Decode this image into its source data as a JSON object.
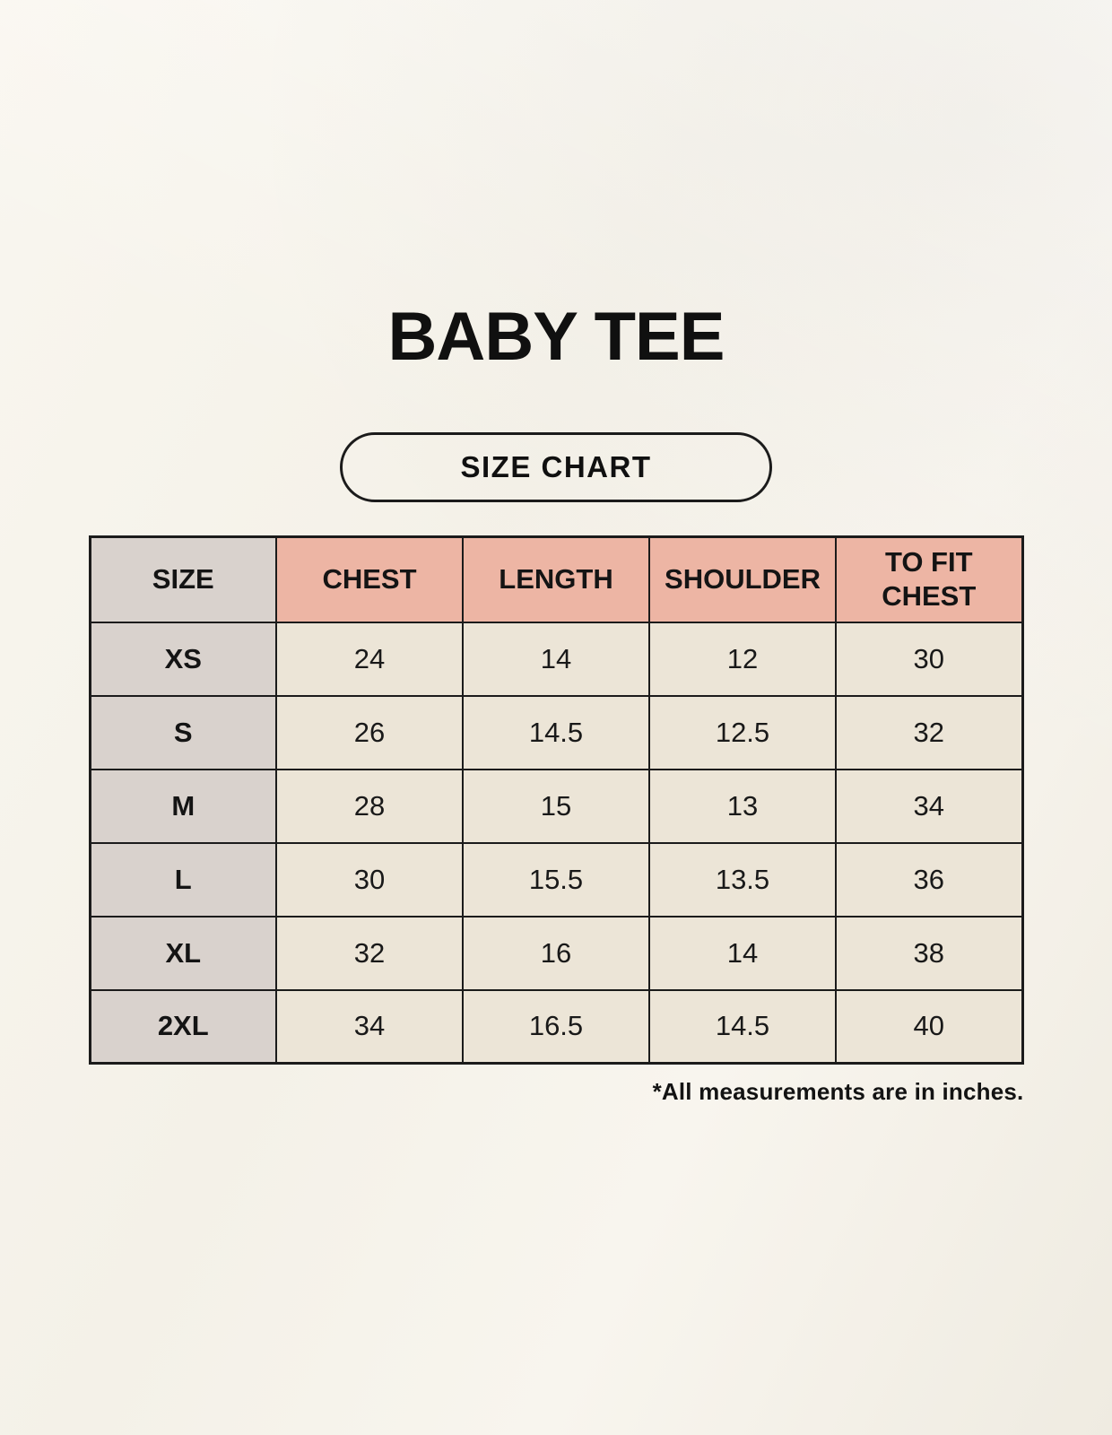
{
  "page": {
    "title": "BABY TEE",
    "size_chart_badge": "SIZE CHART",
    "footnote": "*All measurements are in inches."
  },
  "colors": {
    "page_background": "#f5f2ea",
    "header_pink": "#edb5a4",
    "size_column_gray": "#d9d2cd",
    "cell_cream": "#ece5d7",
    "border_black": "#1b1b1b",
    "text_black": "#141414"
  },
  "chart_data": {
    "type": "table",
    "title": "BABY TEE",
    "units": "inches",
    "columns": [
      "SIZE",
      "CHEST",
      "LENGTH",
      "SHOULDER",
      "TO FIT CHEST"
    ],
    "rows": [
      [
        "XS",
        "24",
        "14",
        "12",
        "30"
      ],
      [
        "S",
        "26",
        "14.5",
        "12.5",
        "32"
      ],
      [
        "M",
        "28",
        "15",
        "13",
        "34"
      ],
      [
        "L",
        "30",
        "15.5",
        "13.5",
        "36"
      ],
      [
        "XL",
        "32",
        "16",
        "14",
        "38"
      ],
      [
        "2XL",
        "34",
        "16.5",
        "14.5",
        "40"
      ]
    ]
  }
}
